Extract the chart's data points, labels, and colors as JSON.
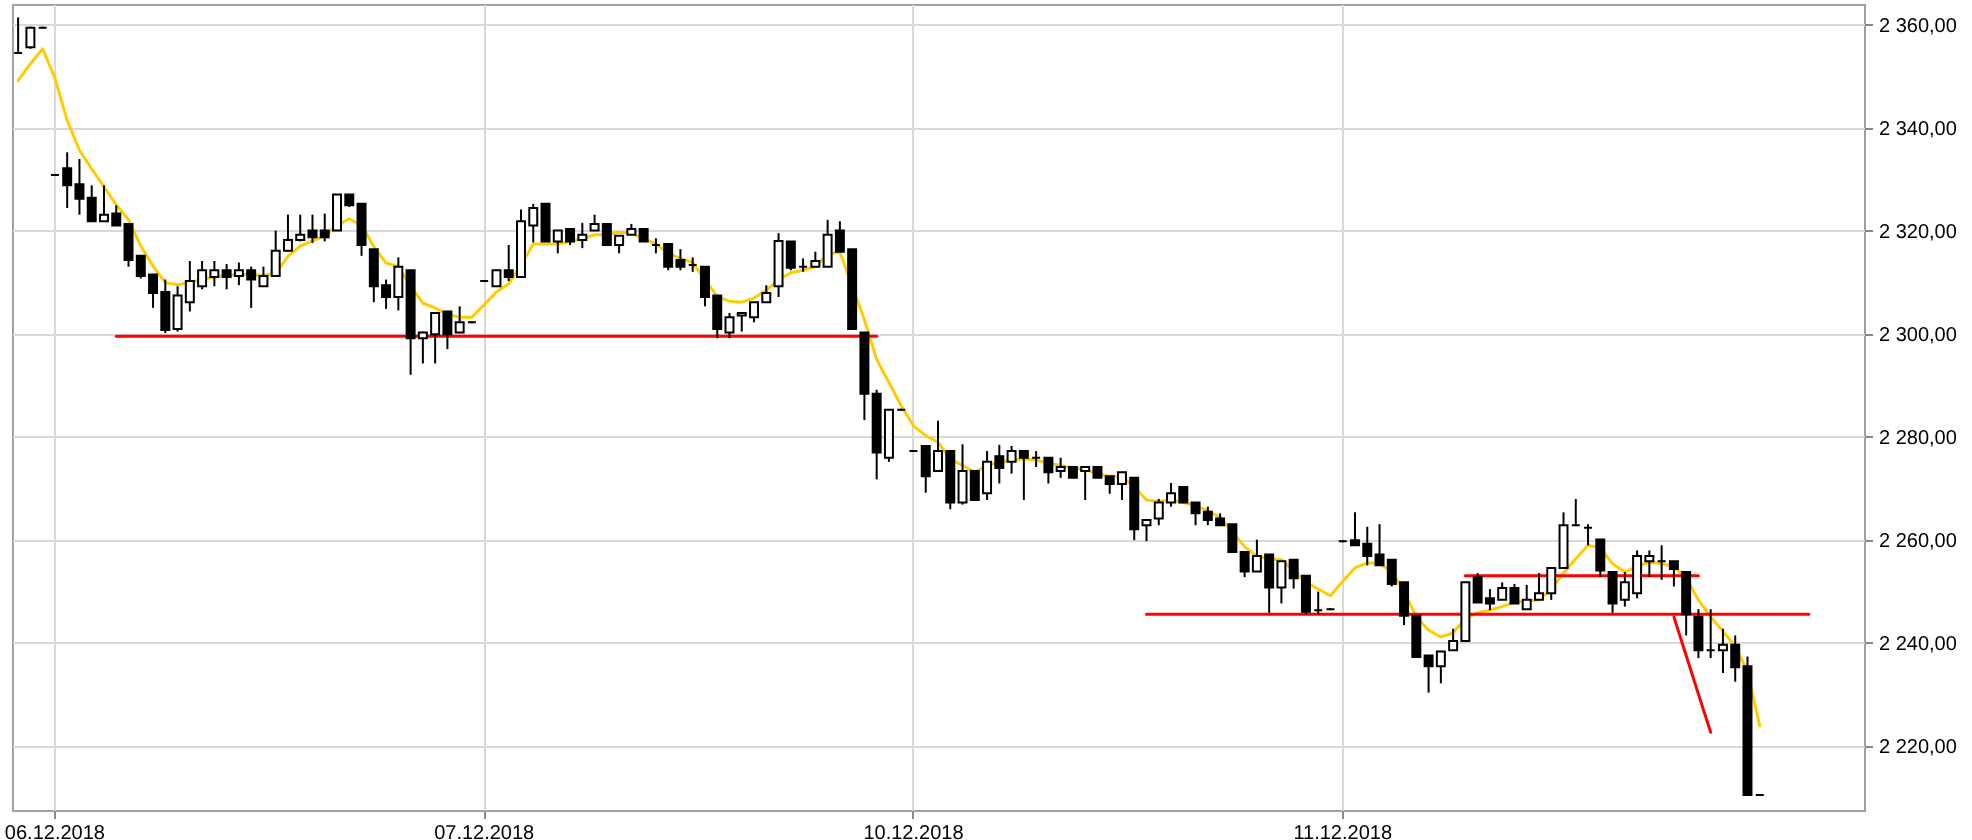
{
  "chart_data": {
    "type": "candlestick",
    "color": "#000000",
    "categories": [
      null,
      null,
      null,
      "06.12.2018",
      null,
      null,
      null,
      null,
      null,
      null,
      null,
      null,
      null,
      null,
      null,
      null,
      null,
      null,
      null,
      null,
      null,
      null,
      null,
      null,
      null,
      null,
      null,
      null,
      null,
      null,
      null,
      null,
      null,
      null,
      null,
      null,
      null,
      null,
      "07.12.2018",
      null,
      null,
      null,
      null,
      null,
      null,
      null,
      null,
      null,
      null,
      null,
      null,
      null,
      null,
      null,
      null,
      null,
      null,
      null,
      null,
      null,
      null,
      null,
      null,
      null,
      null,
      null,
      null,
      null,
      null,
      null,
      null,
      null,
      null,
      "10.12.2018",
      null,
      null,
      null,
      null,
      null,
      null,
      null,
      null,
      null,
      null,
      null,
      null,
      null,
      null,
      null,
      null,
      null,
      null,
      null,
      null,
      null,
      null,
      null,
      null,
      null,
      null,
      null,
      null,
      null,
      null,
      null,
      null,
      null,
      null,
      "11.12.2018",
      null,
      null,
      null,
      null,
      null,
      null,
      null,
      null,
      null,
      null,
      null,
      null,
      null,
      null,
      null,
      null,
      null,
      null,
      null,
      null,
      null,
      null,
      null,
      null,
      null,
      null,
      null,
      null,
      null,
      null,
      null,
      null,
      null,
      null,
      null,
      null,
      null,
      null,
      null,
      null,
      null,
      null
    ],
    "ohlc": [
      [
        2354.5,
        2361.4,
        2354.3,
        2354.5
      ],
      [
        2355.6,
        2359.6,
        2355.3,
        2359.4
      ],
      [
        2359.4,
        2359.6,
        2359.2,
        2359.4
      ],
      [
        2330.8,
        2331.0,
        2330.6,
        2330.8
      ],
      [
        2332.1,
        2335.2,
        2324.4,
        2328.8
      ],
      [
        2329.0,
        2333.9,
        2323.1,
        2326.2
      ],
      [
        2326.4,
        2328.8,
        2321.8,
        2321.8
      ],
      [
        2321.8,
        2328.8,
        2321.8,
        2323.1
      ],
      [
        2323.3,
        2324.9,
        2321.0,
        2321.0
      ],
      [
        2321.3,
        2321.3,
        2313.0,
        2314.3
      ],
      [
        2315.1,
        2315.1,
        2310.7,
        2311.2
      ],
      [
        2311.5,
        2311.5,
        2305.0,
        2307.9
      ],
      [
        2308.1,
        2310.5,
        2300.1,
        2300.7
      ],
      [
        2300.9,
        2309.2,
        2300.4,
        2307.4
      ],
      [
        2306.1,
        2314.1,
        2304.3,
        2310.2
      ],
      [
        2309.2,
        2314.1,
        2308.6,
        2312.3
      ],
      [
        2311.0,
        2314.1,
        2309.2,
        2312.3
      ],
      [
        2312.3,
        2313.5,
        2308.6,
        2311.0
      ],
      [
        2311.2,
        2313.8,
        2309.4,
        2312.3
      ],
      [
        2312.3,
        2313.0,
        2305.0,
        2310.5
      ],
      [
        2309.2,
        2313.0,
        2309.2,
        2311.2
      ],
      [
        2311.2,
        2320.0,
        2311.2,
        2316.1
      ],
      [
        2316.1,
        2323.1,
        2315.9,
        2318.2
      ],
      [
        2318.2,
        2323.1,
        2317.9,
        2319.2
      ],
      [
        2320.0,
        2323.1,
        2317.6,
        2318.7
      ],
      [
        2320.0,
        2323.3,
        2317.9,
        2318.7
      ],
      [
        2320.0,
        2327.0,
        2320.0,
        2327.0
      ],
      [
        2327.0,
        2327.0,
        2324.6,
        2324.9
      ],
      [
        2325.2,
        2325.2,
        2315.1,
        2317.2
      ],
      [
        2316.4,
        2316.4,
        2306.1,
        2309.2
      ],
      [
        2309.4,
        2310.5,
        2304.8,
        2307.1
      ],
      [
        2307.1,
        2314.8,
        2304.5,
        2313.0
      ],
      [
        2312.3,
        2312.3,
        2292.0,
        2299.1
      ],
      [
        2299.1,
        2300.4,
        2294.2,
        2300.2
      ],
      [
        2299.9,
        2304.0,
        2294.2,
        2304.0
      ],
      [
        2304.3,
        2304.3,
        2297.0,
        2299.9
      ],
      [
        2300.2,
        2305.3,
        2300.2,
        2302.2
      ],
      [
        2302.2,
        2302.4,
        2302.0,
        2302.2
      ],
      [
        2310.2,
        2310.4,
        2310.0,
        2310.2
      ],
      [
        2309.2,
        2312.3,
        2309.2,
        2312.3
      ],
      [
        2312.3,
        2317.2,
        2310.2,
        2311.0
      ],
      [
        2311.0,
        2324.1,
        2311.0,
        2321.8
      ],
      [
        2321.0,
        2325.2,
        2317.7,
        2324.4
      ],
      [
        2325.2,
        2325.2,
        2317.9,
        2317.9
      ],
      [
        2317.9,
        2320.0,
        2315.6,
        2320.0
      ],
      [
        2320.3,
        2320.3,
        2317.2,
        2317.9
      ],
      [
        2318.2,
        2321.5,
        2316.6,
        2319.2
      ],
      [
        2320.0,
        2323.1,
        2320.0,
        2321.3
      ],
      [
        2321.3,
        2321.3,
        2317.2,
        2317.2
      ],
      [
        2317.2,
        2319.0,
        2315.6,
        2319.0
      ],
      [
        2319.2,
        2321.3,
        2319.2,
        2320.3
      ],
      [
        2320.3,
        2320.3,
        2317.9,
        2317.9
      ],
      [
        2317.2,
        2318.5,
        2315.6,
        2317.2
      ],
      [
        2317.4,
        2317.4,
        2312.3,
        2313.0
      ],
      [
        2314.3,
        2316.4,
        2312.3,
        2313.0
      ],
      [
        2313.3,
        2314.8,
        2312.0,
        2313.3
      ],
      [
        2313.0,
        2313.0,
        2305.3,
        2307.1
      ],
      [
        2307.4,
        2307.4,
        2299.1,
        2300.9
      ],
      [
        2300.2,
        2304.0,
        2299.1,
        2303.2
      ],
      [
        2303.5,
        2304.0,
        2300.4,
        2304.0
      ],
      [
        2303.2,
        2306.1,
        2302.2,
        2306.1
      ],
      [
        2306.1,
        2309.4,
        2306.1,
        2307.9
      ],
      [
        2309.2,
        2319.5,
        2307.1,
        2318.0
      ],
      [
        2317.9,
        2317.9,
        2312.3,
        2312.8
      ],
      [
        2313.0,
        2314.6,
        2312.0,
        2313.0
      ],
      [
        2313.0,
        2315.9,
        2313.0,
        2314.1
      ],
      [
        2313.0,
        2322.1,
        2313.0,
        2319.2
      ],
      [
        2320.0,
        2321.8,
        2315.9,
        2315.9
      ],
      [
        2316.4,
        2316.4,
        2300.9,
        2300.9
      ],
      [
        2300.2,
        2300.2,
        2283.2,
        2288.3
      ],
      [
        2288.3,
        2289.1,
        2271.7,
        2276.9
      ],
      [
        2275.9,
        2285.2,
        2275.1,
        2285.2
      ],
      [
        2285.2,
        2285.4,
        2285.0,
        2285.2
      ],
      [
        2277.2,
        2277.4,
        2277.0,
        2277.2
      ],
      [
        2278.2,
        2278.2,
        2269.1,
        2272.3
      ],
      [
        2273.3,
        2283.1,
        2273.3,
        2277.2
      ],
      [
        2277.2,
        2277.2,
        2265.9,
        2267.2
      ],
      [
        2267.2,
        2278.5,
        2266.8,
        2273.3
      ],
      [
        2273.3,
        2273.3,
        2267.7,
        2267.7
      ],
      [
        2269.0,
        2277.2,
        2267.7,
        2275.1
      ],
      [
        2276.2,
        2278.4,
        2270.9,
        2273.9
      ],
      [
        2275.1,
        2278.2,
        2272.8,
        2277.2
      ],
      [
        2277.2,
        2277.2,
        2267.7,
        2275.9
      ],
      [
        2275.9,
        2277.2,
        2274.1,
        2275.9
      ],
      [
        2275.9,
        2275.9,
        2270.9,
        2273.1
      ],
      [
        2273.3,
        2275.9,
        2272.0,
        2274.1
      ],
      [
        2274.1,
        2274.1,
        2272.0,
        2272.0
      ],
      [
        2273.3,
        2274.1,
        2267.7,
        2274.1
      ],
      [
        2274.1,
        2274.1,
        2272.0,
        2272.0
      ],
      [
        2272.3,
        2272.3,
        2268.9,
        2270.8
      ],
      [
        2270.8,
        2273.1,
        2267.7,
        2273.1
      ],
      [
        2272.0,
        2272.0,
        2259.9,
        2262.0
      ],
      [
        2262.8,
        2263.8,
        2259.7,
        2263.8
      ],
      [
        2264.1,
        2267.9,
        2262.8,
        2267.2
      ],
      [
        2267.2,
        2271.0,
        2266.4,
        2269.0
      ],
      [
        2270.2,
        2270.2,
        2267.2,
        2267.2
      ],
      [
        2267.2,
        2267.2,
        2262.8,
        2265.1
      ],
      [
        2265.4,
        2266.4,
        2262.8,
        2263.8
      ],
      [
        2264.1,
        2265.1,
        2262.8,
        2262.8
      ],
      [
        2263.0,
        2263.0,
        2257.6,
        2257.6
      ],
      [
        2257.6,
        2257.6,
        2252.7,
        2253.8
      ],
      [
        2253.8,
        2260.0,
        2253.8,
        2256.8
      ],
      [
        2257.1,
        2257.1,
        2245.8,
        2250.7
      ],
      [
        2250.7,
        2255.8,
        2247.6,
        2255.8
      ],
      [
        2256.1,
        2256.1,
        2250.5,
        2252.5
      ],
      [
        2253.0,
        2253.0,
        2245.5,
        2246.0
      ],
      [
        2246.3,
        2249.9,
        2245.5,
        2246.3
      ],
      [
        2246.5,
        2246.7,
        2246.3,
        2246.5
      ],
      [
        2259.7,
        2259.9,
        2259.5,
        2259.7
      ],
      [
        2259.9,
        2265.3,
        2258.9,
        2258.9
      ],
      [
        2259.2,
        2262.5,
        2255.0,
        2256.8
      ],
      [
        2257.1,
        2263.0,
        2255.0,
        2255.0
      ],
      [
        2256.1,
        2256.1,
        2250.9,
        2251.4
      ],
      [
        2251.7,
        2251.7,
        2243.4,
        2245.2
      ],
      [
        2245.2,
        2245.2,
        2237.2,
        2237.2
      ],
      [
        2237.5,
        2237.5,
        2230.3,
        2235.4
      ],
      [
        2235.4,
        2238.3,
        2232.1,
        2238.3
      ],
      [
        2238.5,
        2242.7,
        2238.5,
        2240.3
      ],
      [
        2240.3,
        2251.7,
        2240.3,
        2251.7
      ],
      [
        2252.7,
        2253.5,
        2247.8,
        2247.8
      ],
      [
        2248.6,
        2250.4,
        2246.3,
        2247.6
      ],
      [
        2248.3,
        2251.7,
        2248.3,
        2250.6
      ],
      [
        2250.6,
        2251.4,
        2247.6,
        2247.6
      ],
      [
        2246.5,
        2251.2,
        2246.5,
        2248.3
      ],
      [
        2248.3,
        2253.5,
        2248.3,
        2249.6
      ],
      [
        2249.6,
        2254.5,
        2248.3,
        2254.5
      ],
      [
        2254.5,
        2265.3,
        2254.5,
        2262.8
      ],
      [
        2262.8,
        2267.9,
        2262.8,
        2262.8
      ],
      [
        2262.3,
        2263.0,
        2258.9,
        2262.3
      ],
      [
        2260.0,
        2260.0,
        2252.7,
        2254.0
      ],
      [
        2253.7,
        2253.7,
        2245.8,
        2247.6
      ],
      [
        2248.3,
        2253.7,
        2247.0,
        2251.7
      ],
      [
        2249.6,
        2257.9,
        2248.6,
        2256.8
      ],
      [
        2255.8,
        2257.9,
        2252.7,
        2256.8
      ],
      [
        2255.8,
        2258.9,
        2252.2,
        2255.8
      ],
      [
        2255.8,
        2255.8,
        2250.9,
        2254.3
      ],
      [
        2253.7,
        2253.7,
        2241.4,
        2245.5
      ],
      [
        2245.0,
        2246.5,
        2237.0,
        2238.5
      ],
      [
        2238.5,
        2246.5,
        2237.0,
        2238.5
      ],
      [
        2238.5,
        2242.7,
        2234.1,
        2239.6
      ],
      [
        2239.6,
        2241.4,
        2232.4,
        2235.2
      ],
      [
        2235.4,
        2237.3,
        2210.4,
        2210.4
      ],
      [
        2210.4,
        2210.6,
        2210.2,
        2210.4
      ],
      null,
      null,
      null,
      null,
      null,
      null,
      null,
      null
    ],
    "series": [
      {
        "type": "line",
        "color": "#ffcc00",
        "values": [
          2349.1,
          2352.4,
          2355.3,
          2349.6,
          2341.4,
          2335.6,
          2332.0,
          2328.5,
          2325.0,
          2322.1,
          2317.0,
          2313.1,
          2309.9,
          2309.5,
          2309.9,
          2310.5,
          2311.0,
          2311.3,
          2311.5,
          2311.5,
          2311.3,
          2311.7,
          2315.0,
          2317.0,
          2318.0,
          2319.0,
          2321.0,
          2322.3,
          2321.0,
          2316.9,
          2313.7,
          2313.0,
          2309.2,
          2305.9,
          2305.0,
          2303.7,
          2303.2,
          2303.2,
          2305.6,
          2308.1,
          2309.7,
          2313.3,
          2317.4,
          2317.4,
          2317.4,
          2317.9,
          2318.4,
          2319.2,
          2319.2,
          2319.7,
          2319.5,
          2318.4,
          2317.4,
          2315.6,
          2314.6,
          2313.8,
          2310.5,
          2307.2,
          2306.3,
          2306.1,
          2306.9,
          2308.4,
          2310.5,
          2311.8,
          2312.3,
          2313.0,
          2315.4,
          2315.9,
          null,
          2302.7,
          2295.0,
          2290.5,
          2286.0,
          2282.1,
          2280.2,
          2278.9,
          2275.7,
          2274.4,
          2273.1,
          2274.4,
          2275.1,
          2275.4,
          2275.7,
          2275.4,
          2274.9,
          2274.4,
          2273.9,
          2273.6,
          2272.8,
          2272.3,
          2272.3,
          2270.2,
          2267.7,
          2267.4,
          2267.7,
          2267.2,
          2266.6,
          2265.6,
          2264.3,
          2261.5,
          2258.6,
          2256.8,
          2256.3,
          2256.1,
          2254.0,
          2251.7,
          2250.4,
          2249.1,
          2251.9,
          2254.5,
          2255.5,
          2255.3,
          2253.8,
          2249.9,
          2245.0,
          2242.4,
          2241.1,
          2241.9,
          2244.7,
          2245.8,
          2246.3,
          2247.0,
          2247.8,
          2248.1,
          2248.3,
          2250.4,
          2253.5,
          2256.3,
          2258.9,
          2258.4,
          2255.3,
          2253.7,
          2254.8,
          2255.6,
          2255.3,
          2254.8,
          2252.5,
          2248.3,
          2245.0,
          2242.2,
          2239.3,
          2234.4,
          2223.8,
          null,
          null,
          null,
          null,
          null,
          null,
          null,
          null
        ]
      },
      {
        "type": "line",
        "color": "#ff0000",
        "values": [
          null,
          null,
          null,
          null,
          null,
          null,
          null,
          null,
          2299.5,
          2299.5,
          2299.5,
          2299.5,
          2299.5,
          2299.5,
          2299.5,
          2299.5,
          2299.5,
          2299.5,
          2299.5,
          2299.5,
          2299.5,
          2299.5,
          2299.5,
          2299.5,
          2299.5,
          2299.5,
          2299.5,
          2299.5,
          2299.5,
          2299.5,
          2299.5,
          2299.5,
          2299.5,
          2299.5,
          2299.5,
          2299.5,
          2299.5,
          2299.5,
          2299.5,
          2299.5,
          2299.5,
          2299.5,
          2299.5,
          2299.5,
          2299.5,
          2299.5,
          2299.5,
          2299.5,
          2299.5,
          2299.5,
          2299.5,
          2299.5,
          2299.5,
          2299.5,
          2299.5,
          2299.5,
          2299.5,
          2299.5,
          2299.5,
          2299.5,
          2299.5,
          2299.5,
          2299.5,
          2299.5,
          2299.5,
          2299.5,
          2299.5,
          2299.5,
          2299.5,
          2299.5,
          2299.5,
          null,
          null,
          null,
          null,
          null,
          null,
          null,
          null,
          null,
          null,
          null,
          null,
          null,
          null,
          null,
          null,
          null,
          null,
          null,
          null,
          null,
          null,
          null,
          null,
          null,
          null,
          null,
          null,
          null,
          null,
          null,
          null,
          null,
          null,
          null,
          null,
          null,
          null,
          null,
          null,
          null,
          null,
          null,
          null,
          null,
          null,
          null,
          null,
          null,
          null,
          null,
          null,
          null,
          null,
          null,
          null,
          null,
          null,
          null,
          null,
          null,
          null,
          null,
          null,
          null,
          null,
          null,
          null,
          null,
          null,
          null,
          null,
          null,
          null,
          null,
          null,
          null,
          null,
          null,
          null
        ]
      },
      {
        "type": "line",
        "color": "#ff0000",
        "values": [
          null,
          null,
          null,
          null,
          null,
          null,
          null,
          null,
          null,
          null,
          null,
          null,
          null,
          null,
          null,
          null,
          null,
          null,
          null,
          null,
          null,
          null,
          null,
          null,
          null,
          null,
          null,
          null,
          null,
          null,
          null,
          null,
          null,
          null,
          null,
          null,
          null,
          null,
          null,
          null,
          null,
          null,
          null,
          null,
          null,
          null,
          null,
          null,
          null,
          null,
          null,
          null,
          null,
          null,
          null,
          null,
          null,
          null,
          null,
          null,
          null,
          null,
          null,
          null,
          null,
          null,
          null,
          null,
          null,
          null,
          null,
          null,
          null,
          null,
          null,
          null,
          null,
          null,
          null,
          null,
          null,
          null,
          null,
          null,
          null,
          null,
          null,
          null,
          null,
          null,
          null,
          null,
          2245.5,
          2245.5,
          2245.5,
          2245.5,
          2245.5,
          2245.5,
          2245.5,
          2245.5,
          2245.5,
          2245.5,
          2245.5,
          2245.5,
          2245.5,
          2245.5,
          2245.5,
          2245.5,
          2245.5,
          2245.5,
          2245.5,
          2245.5,
          2245.5,
          2245.5,
          2245.5,
          2245.5,
          2245.5,
          2245.5,
          2245.5,
          2245.5,
          2245.5,
          2245.5,
          2245.5,
          2245.5,
          2245.5,
          2245.5,
          2245.5,
          2245.5,
          2245.5,
          2245.5,
          2245.5,
          2245.5,
          2245.5,
          2245.5,
          2245.5,
          2245.5,
          2245.5,
          2245.5,
          2245.5,
          2245.5,
          2245.5,
          2245.5,
          2245.5,
          2245.5,
          2245.5,
          2245.5,
          2245.5,
          null,
          null,
          null,
          null
        ]
      },
      {
        "type": "line",
        "color": "#ff0000",
        "values": [
          null,
          null,
          null,
          null,
          null,
          null,
          null,
          null,
          null,
          null,
          null,
          null,
          null,
          null,
          null,
          null,
          null,
          null,
          null,
          null,
          null,
          null,
          null,
          null,
          null,
          null,
          null,
          null,
          null,
          null,
          null,
          null,
          null,
          null,
          null,
          null,
          null,
          null,
          null,
          null,
          null,
          null,
          null,
          null,
          null,
          null,
          null,
          null,
          null,
          null,
          null,
          null,
          null,
          null,
          null,
          null,
          null,
          null,
          null,
          null,
          null,
          null,
          null,
          null,
          null,
          null,
          null,
          null,
          null,
          null,
          null,
          null,
          null,
          null,
          null,
          null,
          null,
          null,
          null,
          null,
          null,
          null,
          null,
          null,
          null,
          null,
          null,
          null,
          null,
          null,
          null,
          null,
          null,
          null,
          null,
          null,
          null,
          null,
          null,
          null,
          null,
          null,
          null,
          null,
          null,
          null,
          null,
          null,
          null,
          null,
          null,
          null,
          null,
          null,
          null,
          null,
          null,
          null,
          2253.0,
          2253.0,
          2253.0,
          2253.0,
          2253.0,
          2253.0,
          2253.0,
          2253.0,
          2253.0,
          2253.0,
          2253.0,
          2253.0,
          2253.0,
          2253.0,
          2253.0,
          2253.0,
          2253.0,
          2253.0,
          2253.0,
          2253.0,
          null,
          null,
          null,
          null,
          null,
          null,
          null,
          null,
          null,
          null,
          null,
          null,
          null
        ]
      },
      {
        "type": "line",
        "color": "#ff0000",
        "values": [
          null,
          null,
          null,
          null,
          null,
          null,
          null,
          null,
          null,
          null,
          null,
          null,
          null,
          null,
          null,
          null,
          null,
          null,
          null,
          null,
          null,
          null,
          null,
          null,
          null,
          null,
          null,
          null,
          null,
          null,
          null,
          null,
          null,
          null,
          null,
          null,
          null,
          null,
          null,
          null,
          null,
          null,
          null,
          null,
          null,
          null,
          null,
          null,
          null,
          null,
          null,
          null,
          null,
          null,
          null,
          null,
          null,
          null,
          null,
          null,
          null,
          null,
          null,
          null,
          null,
          null,
          null,
          null,
          null,
          null,
          null,
          null,
          null,
          null,
          null,
          null,
          null,
          null,
          null,
          null,
          null,
          null,
          null,
          null,
          null,
          null,
          null,
          null,
          null,
          null,
          null,
          null,
          null,
          null,
          null,
          null,
          null,
          null,
          null,
          null,
          null,
          null,
          null,
          null,
          null,
          null,
          null,
          null,
          null,
          null,
          null,
          null,
          null,
          null,
          null,
          null,
          null,
          null,
          null,
          null,
          null,
          null,
          null,
          null,
          null,
          null,
          null,
          null,
          null,
          null,
          null,
          null,
          null,
          null,
          null,
          2245.0,
          2237.5,
          2230.0,
          2222.6,
          null,
          null,
          null,
          null,
          null,
          null,
          null,
          null,
          null,
          null,
          null,
          null
        ]
      }
    ],
    "ylim": [
      2207.5,
      2364
    ],
    "yticks": [
      {
        "value": 2220,
        "label": "2 220,00"
      },
      {
        "value": 2240,
        "label": "2 240,00"
      },
      {
        "value": 2260,
        "label": "2 260,00"
      },
      {
        "value": 2280,
        "label": "2 280,00"
      },
      {
        "value": 2300,
        "label": "2 300,00"
      },
      {
        "value": 2320,
        "label": "2 320,00"
      },
      {
        "value": 2340,
        "label": "2 340,00"
      },
      {
        "value": 2360,
        "label": "2 360,00"
      }
    ],
    "grid": true
  }
}
